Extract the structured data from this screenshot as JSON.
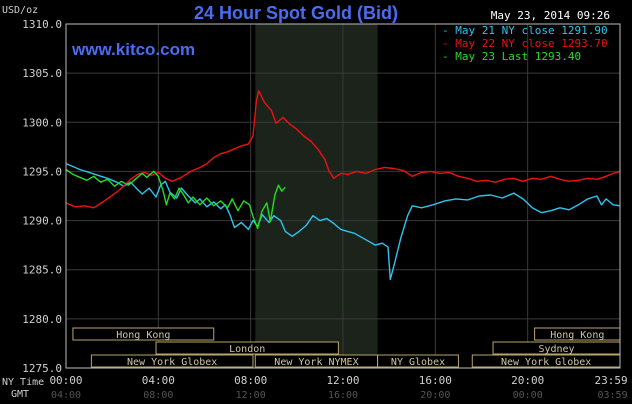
{
  "chart_data": {
    "type": "line",
    "title": "24 Hour Spot Gold (Bid)",
    "unit_label": "USD/oz",
    "watermark": "www.kitco.com",
    "timestamp": "May 23, 2014 09:26",
    "ylim": [
      1275.0,
      1310.0
    ],
    "y_ticks": [
      "1275.0",
      "1280.0",
      "1285.0",
      "1290.0",
      "1295.0",
      "1300.0",
      "1305.0",
      "1310.0"
    ],
    "xlim_hours": [
      0,
      24
    ],
    "x_axis_ny": {
      "label": "NY Time",
      "ticks": [
        {
          "t": 0,
          "label": "00:00"
        },
        {
          "t": 4,
          "label": "04:00"
        },
        {
          "t": 8,
          "label": "08:00"
        },
        {
          "t": 12,
          "label": "12:00"
        },
        {
          "t": 16,
          "label": "16:00"
        },
        {
          "t": 20,
          "label": "20:00"
        },
        {
          "t": 23.983,
          "label": "23:59"
        }
      ]
    },
    "x_axis_gmt": {
      "label": "GMT",
      "ticks": [
        {
          "t": 0,
          "label": "04:00"
        },
        {
          "t": 4,
          "label": "08:00"
        },
        {
          "t": 8,
          "label": "12:00"
        },
        {
          "t": 12,
          "label": "16:00"
        },
        {
          "t": 16,
          "label": "20:00"
        },
        {
          "t": 20,
          "label": "00:00"
        },
        {
          "t": 23.983,
          "label": "03:59"
        }
      ]
    },
    "shaded_session_hours": [
      8.2,
      13.5
    ],
    "legend_position": "top-right",
    "series": [
      {
        "name": "May 21 NY close 1291.90",
        "color": "#2ec4ee",
        "points": [
          [
            0,
            1295.8
          ],
          [
            0.3,
            1295.5
          ],
          [
            0.6,
            1295.2
          ],
          [
            1.0,
            1294.9
          ],
          [
            1.4,
            1294.6
          ],
          [
            1.8,
            1294.3
          ],
          [
            2.2,
            1293.9
          ],
          [
            2.5,
            1293.5
          ],
          [
            2.8,
            1293.9
          ],
          [
            3.0,
            1293.4
          ],
          [
            3.3,
            1292.7
          ],
          [
            3.6,
            1293.3
          ],
          [
            3.9,
            1292.4
          ],
          [
            4.1,
            1293.6
          ],
          [
            4.3,
            1294.0
          ],
          [
            4.5,
            1292.9
          ],
          [
            4.8,
            1292.3
          ],
          [
            5.0,
            1293.3
          ],
          [
            5.3,
            1292.5
          ],
          [
            5.6,
            1291.8
          ],
          [
            5.8,
            1292.2
          ],
          [
            6.1,
            1291.4
          ],
          [
            6.4,
            1291.9
          ],
          [
            6.7,
            1291.2
          ],
          [
            6.9,
            1291.6
          ],
          [
            7.1,
            1290.6
          ],
          [
            7.3,
            1289.3
          ],
          [
            7.6,
            1289.8
          ],
          [
            7.9,
            1289.1
          ],
          [
            8.1,
            1290.0
          ],
          [
            8.3,
            1289.4
          ],
          [
            8.5,
            1290.6
          ],
          [
            8.8,
            1289.8
          ],
          [
            9.0,
            1290.5
          ],
          [
            9.3,
            1290.0
          ],
          [
            9.5,
            1288.9
          ],
          [
            9.8,
            1288.4
          ],
          [
            10.1,
            1288.9
          ],
          [
            10.4,
            1289.5
          ],
          [
            10.7,
            1290.5
          ],
          [
            11.0,
            1290.0
          ],
          [
            11.3,
            1290.2
          ],
          [
            11.6,
            1289.7
          ],
          [
            11.9,
            1289.1
          ],
          [
            12.2,
            1288.9
          ],
          [
            12.5,
            1288.7
          ],
          [
            12.8,
            1288.3
          ],
          [
            13.1,
            1287.9
          ],
          [
            13.4,
            1287.5
          ],
          [
            13.7,
            1287.7
          ],
          [
            13.95,
            1287.3
          ],
          [
            14.05,
            1284.0
          ],
          [
            14.25,
            1285.8
          ],
          [
            14.5,
            1288.2
          ],
          [
            14.8,
            1290.5
          ],
          [
            15.0,
            1291.5
          ],
          [
            15.4,
            1291.3
          ],
          [
            15.9,
            1291.6
          ],
          [
            16.4,
            1292.0
          ],
          [
            16.9,
            1292.2
          ],
          [
            17.4,
            1292.1
          ],
          [
            17.9,
            1292.5
          ],
          [
            18.4,
            1292.6
          ],
          [
            18.9,
            1292.3
          ],
          [
            19.4,
            1292.8
          ],
          [
            19.8,
            1292.2
          ],
          [
            20.2,
            1291.3
          ],
          [
            20.6,
            1290.8
          ],
          [
            21.0,
            1291.0
          ],
          [
            21.4,
            1291.3
          ],
          [
            21.8,
            1291.1
          ],
          [
            22.2,
            1291.6
          ],
          [
            22.6,
            1292.2
          ],
          [
            23.0,
            1292.5
          ],
          [
            23.2,
            1291.6
          ],
          [
            23.4,
            1292.2
          ],
          [
            23.7,
            1291.6
          ],
          [
            24.0,
            1291.5
          ]
        ]
      },
      {
        "name": "May 22 NY close 1293.70",
        "color": "#ee1111",
        "points": [
          [
            0,
            1291.8
          ],
          [
            0.4,
            1291.4
          ],
          [
            0.8,
            1291.5
          ],
          [
            1.2,
            1291.3
          ],
          [
            1.6,
            1291.9
          ],
          [
            1.9,
            1292.4
          ],
          [
            2.2,
            1292.9
          ],
          [
            2.5,
            1293.5
          ],
          [
            2.8,
            1294.2
          ],
          [
            3.1,
            1294.7
          ],
          [
            3.4,
            1294.9
          ],
          [
            3.7,
            1294.6
          ],
          [
            4.0,
            1294.9
          ],
          [
            4.3,
            1294.3
          ],
          [
            4.6,
            1294.0
          ],
          [
            5.0,
            1294.4
          ],
          [
            5.4,
            1295.0
          ],
          [
            5.8,
            1295.4
          ],
          [
            6.1,
            1295.8
          ],
          [
            6.4,
            1296.4
          ],
          [
            6.7,
            1296.8
          ],
          [
            7.0,
            1297.0
          ],
          [
            7.3,
            1297.3
          ],
          [
            7.6,
            1297.6
          ],
          [
            7.9,
            1297.8
          ],
          [
            8.1,
            1298.6
          ],
          [
            8.25,
            1302.2
          ],
          [
            8.35,
            1303.2
          ],
          [
            8.6,
            1302.0
          ],
          [
            8.9,
            1301.2
          ],
          [
            9.1,
            1299.9
          ],
          [
            9.4,
            1300.5
          ],
          [
            9.7,
            1299.8
          ],
          [
            10.0,
            1299.3
          ],
          [
            10.3,
            1298.6
          ],
          [
            10.6,
            1298.1
          ],
          [
            10.9,
            1297.3
          ],
          [
            11.2,
            1296.3
          ],
          [
            11.4,
            1295.0
          ],
          [
            11.6,
            1294.3
          ],
          [
            11.9,
            1294.8
          ],
          [
            12.2,
            1294.7
          ],
          [
            12.6,
            1295.0
          ],
          [
            13.0,
            1294.8
          ],
          [
            13.4,
            1295.2
          ],
          [
            13.8,
            1295.4
          ],
          [
            14.2,
            1295.3
          ],
          [
            14.6,
            1295.1
          ],
          [
            15.0,
            1294.5
          ],
          [
            15.4,
            1294.9
          ],
          [
            15.8,
            1295.0
          ],
          [
            16.2,
            1294.8
          ],
          [
            16.6,
            1294.9
          ],
          [
            17.0,
            1294.5
          ],
          [
            17.4,
            1294.3
          ],
          [
            17.8,
            1294.0
          ],
          [
            18.2,
            1294.1
          ],
          [
            18.6,
            1293.9
          ],
          [
            19.0,
            1294.2
          ],
          [
            19.4,
            1294.3
          ],
          [
            19.8,
            1294.0
          ],
          [
            20.2,
            1294.3
          ],
          [
            20.6,
            1294.2
          ],
          [
            21.0,
            1294.5
          ],
          [
            21.4,
            1294.2
          ],
          [
            21.8,
            1294.0
          ],
          [
            22.2,
            1294.1
          ],
          [
            22.6,
            1294.3
          ],
          [
            23.0,
            1294.2
          ],
          [
            23.4,
            1294.5
          ],
          [
            23.7,
            1294.8
          ],
          [
            24.0,
            1295.0
          ]
        ]
      },
      {
        "name": "May 23 Last 1293.40",
        "color": "#22dd22",
        "points": [
          [
            0,
            1295.2
          ],
          [
            0.3,
            1294.7
          ],
          [
            0.6,
            1294.4
          ],
          [
            0.9,
            1294.1
          ],
          [
            1.2,
            1294.5
          ],
          [
            1.5,
            1293.9
          ],
          [
            1.8,
            1294.2
          ],
          [
            2.1,
            1293.5
          ],
          [
            2.4,
            1294.0
          ],
          [
            2.7,
            1293.6
          ],
          [
            3.0,
            1294.2
          ],
          [
            3.3,
            1294.8
          ],
          [
            3.5,
            1294.4
          ],
          [
            3.8,
            1295.0
          ],
          [
            4.0,
            1294.5
          ],
          [
            4.2,
            1293.1
          ],
          [
            4.35,
            1291.6
          ],
          [
            4.5,
            1292.8
          ],
          [
            4.7,
            1292.2
          ],
          [
            4.9,
            1293.3
          ],
          [
            5.1,
            1292.6
          ],
          [
            5.3,
            1291.8
          ],
          [
            5.5,
            1292.4
          ],
          [
            5.8,
            1291.6
          ],
          [
            6.1,
            1292.3
          ],
          [
            6.4,
            1291.5
          ],
          [
            6.7,
            1292.0
          ],
          [
            7.0,
            1291.3
          ],
          [
            7.2,
            1292.2
          ],
          [
            7.45,
            1291.0
          ],
          [
            7.7,
            1292.0
          ],
          [
            7.95,
            1291.6
          ],
          [
            8.1,
            1290.4
          ],
          [
            8.3,
            1289.2
          ],
          [
            8.5,
            1291.0
          ],
          [
            8.7,
            1291.8
          ],
          [
            8.85,
            1289.9
          ],
          [
            9.05,
            1292.6
          ],
          [
            9.2,
            1293.6
          ],
          [
            9.35,
            1293.0
          ],
          [
            9.5,
            1293.4
          ]
        ]
      }
    ]
  },
  "sessions": [
    {
      "label": "Hong Kong",
      "start": 0.3,
      "end": 6.4,
      "row": 0
    },
    {
      "label": "London",
      "start": 3.9,
      "end": 11.8,
      "row": 1
    },
    {
      "label": "New York Globex",
      "start": 1.1,
      "end": 8.1,
      "row": 2
    },
    {
      "label": "New York NYMEX",
      "start": 8.2,
      "end": 13.5,
      "row": 2
    },
    {
      "label": "NY Globex",
      "start": 13.5,
      "end": 17.0,
      "row": 2
    },
    {
      "label": "New York Globex",
      "start": 17.6,
      "end": 24.0,
      "row": 2
    },
    {
      "label": "Sydney",
      "start": 18.5,
      "end": 24.0,
      "row": 1
    },
    {
      "label": "Hong Kong",
      "start": 20.3,
      "end": 24.0,
      "row": 0
    }
  ]
}
